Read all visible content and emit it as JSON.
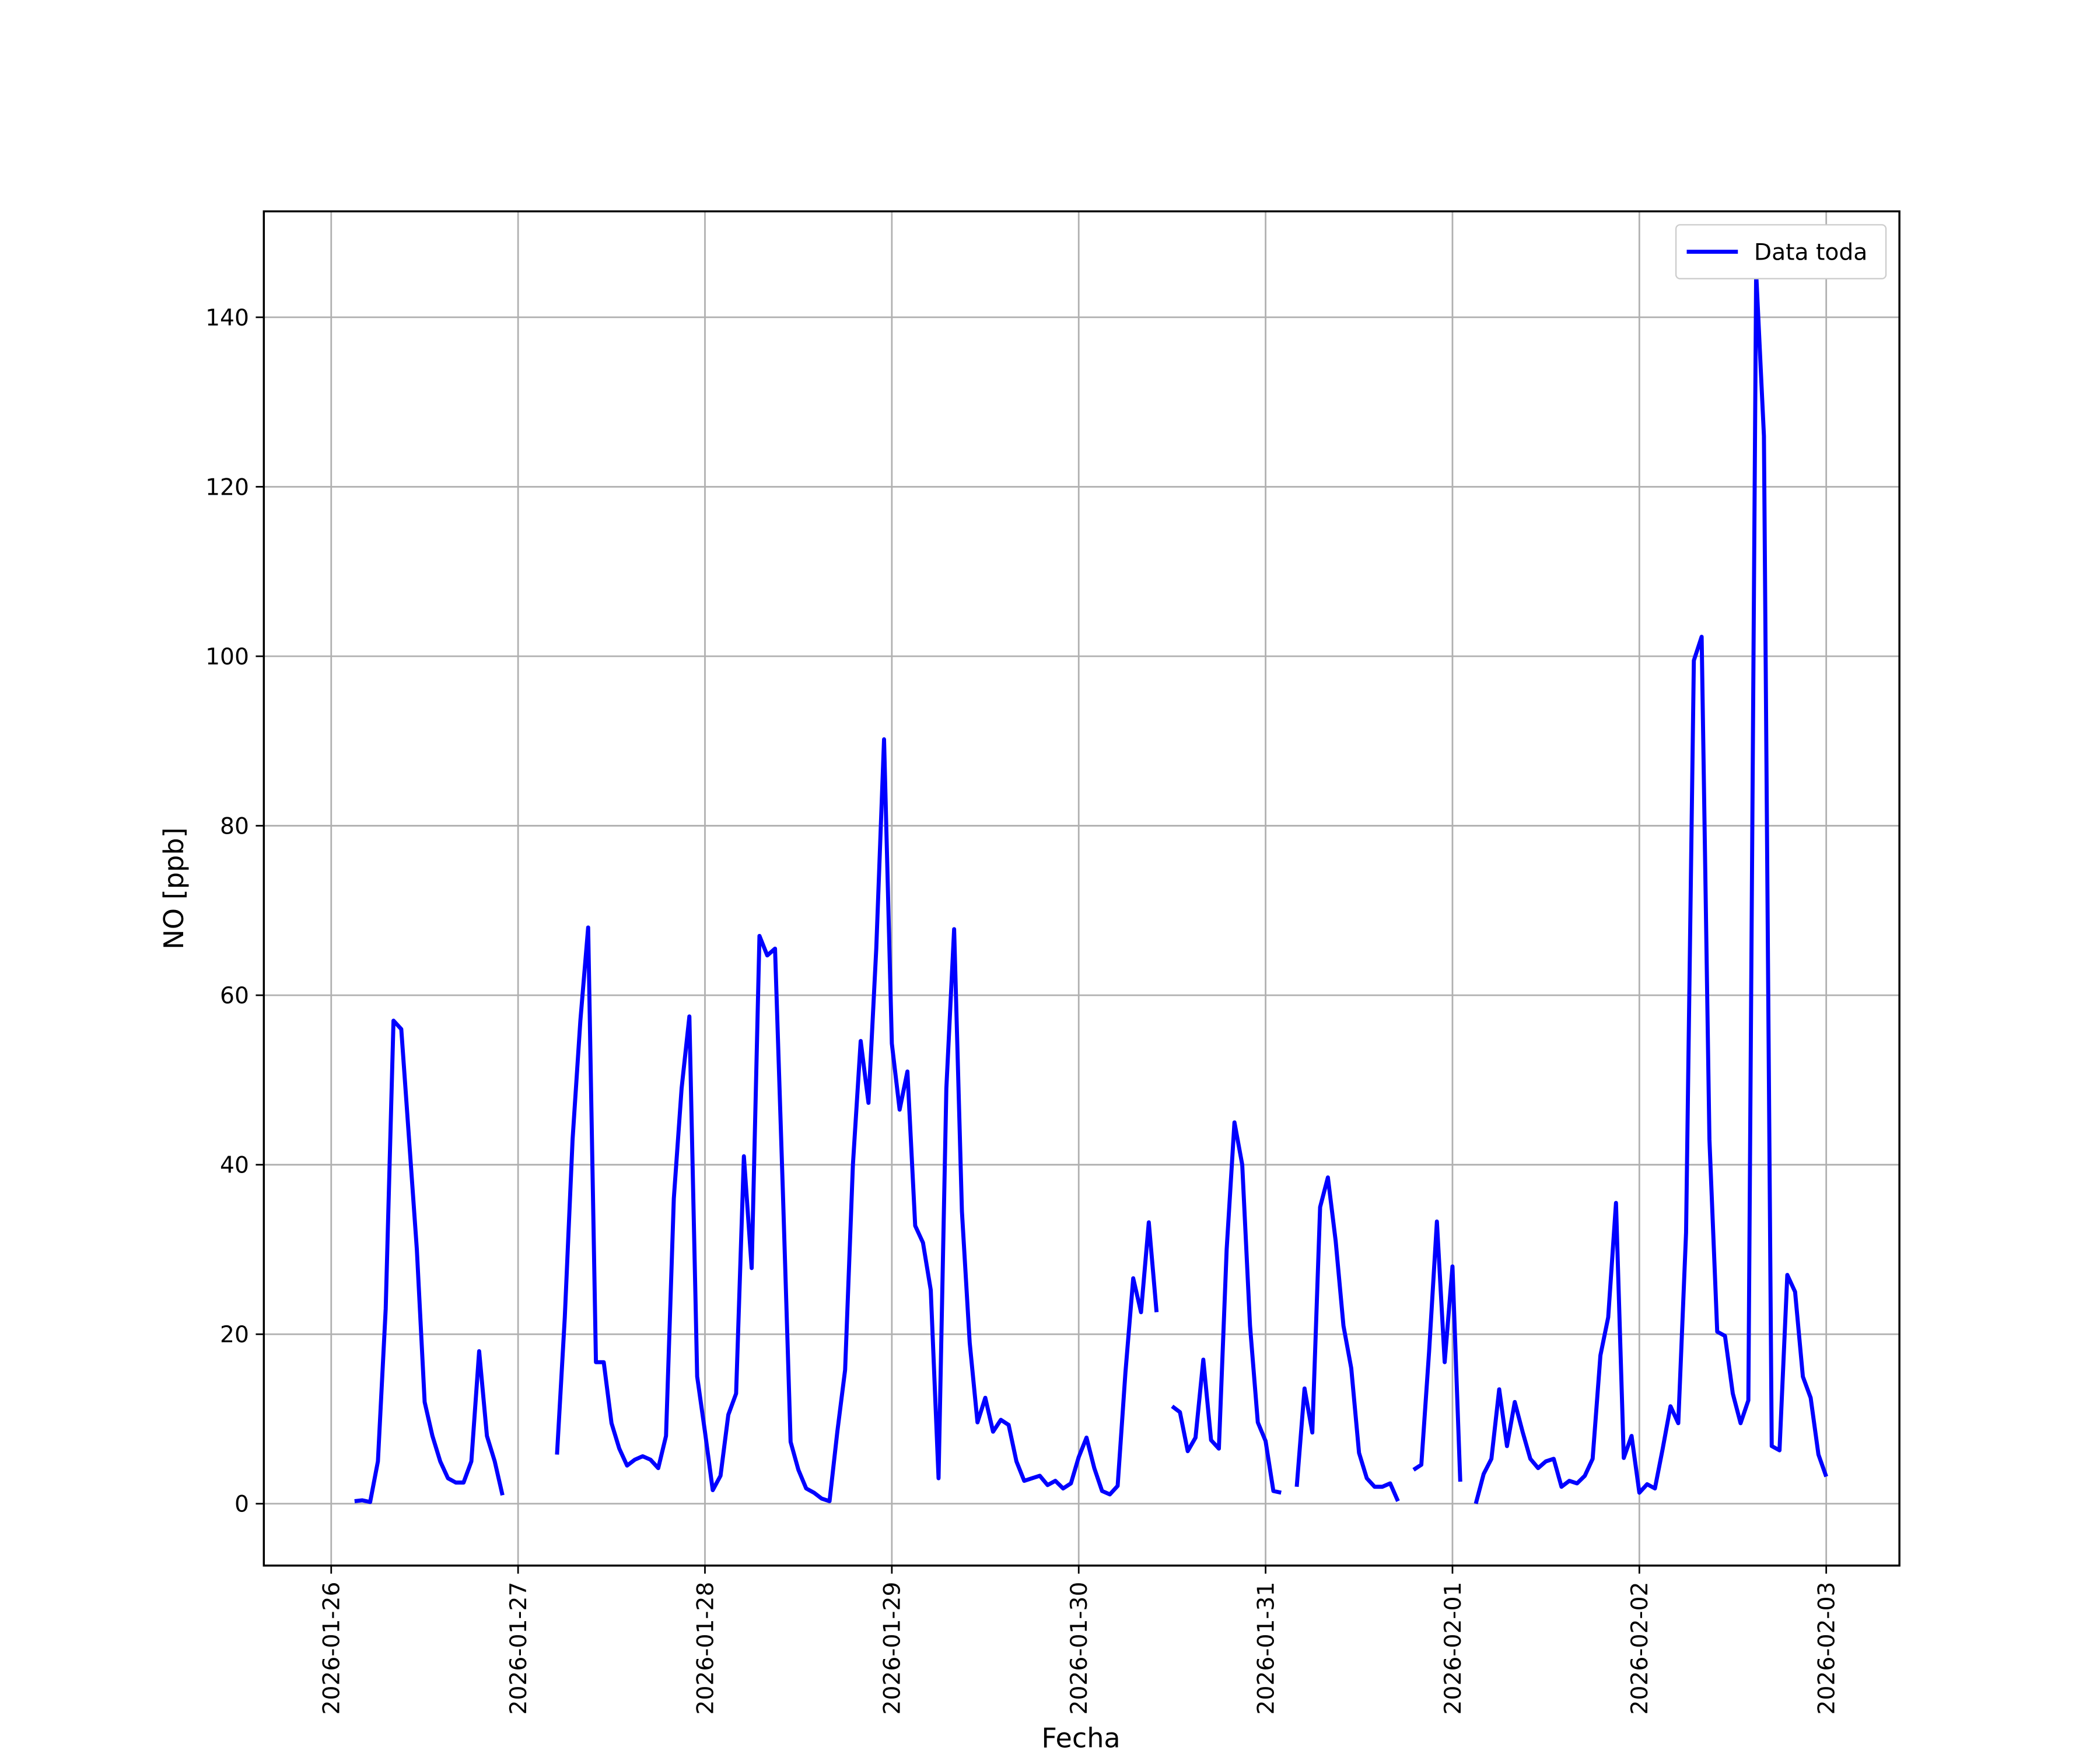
{
  "chart_data": {
    "type": "line",
    "xlabel": "Fecha",
    "ylabel": "NO [ppb]",
    "x": [
      3,
      4,
      5,
      6,
      7,
      8,
      9,
      10,
      11,
      12,
      13,
      14,
      15,
      16,
      17,
      18,
      19,
      20,
      21,
      22,
      23,
      24,
      25,
      26,
      27,
      28,
      29,
      30,
      31,
      32,
      33,
      34,
      35,
      36,
      37,
      38,
      39,
      40,
      41,
      42,
      43,
      44,
      45,
      46,
      47,
      48,
      49,
      50,
      51,
      52,
      53,
      54,
      55,
      56,
      57,
      58,
      59,
      60,
      61,
      62,
      63,
      64,
      65,
      66,
      67,
      68,
      69,
      70,
      71,
      72,
      73,
      74,
      75,
      76,
      77,
      78,
      79,
      80,
      81,
      82,
      83,
      84,
      85,
      86,
      87,
      88,
      89,
      90,
      91,
      92,
      93,
      94,
      95,
      96,
      97,
      98,
      99,
      100,
      101,
      102,
      103,
      104,
      105,
      106,
      107,
      108,
      109,
      110,
      111,
      112,
      113,
      114,
      115,
      116,
      117,
      118,
      119,
      120,
      121,
      122,
      123,
      124,
      125,
      126,
      127,
      128,
      129,
      130,
      131,
      132,
      133,
      134,
      135,
      136,
      137,
      138,
      139,
      140,
      141,
      142,
      143,
      144,
      145,
      146,
      147,
      148,
      149,
      150,
      151,
      152,
      153,
      154,
      155,
      156,
      157,
      158,
      159,
      160,
      161,
      162,
      163,
      164,
      165,
      166,
      167,
      168,
      169,
      170,
      171,
      172,
      173,
      174,
      175,
      176,
      177,
      178,
      179,
      180,
      181,
      182,
      183,
      184,
      185,
      186,
      187,
      188,
      189,
      190,
      191,
      192
    ],
    "series": [
      {
        "name": "Data toda",
        "color": "#0000ff",
        "values": [
          0.3,
          0.4,
          0.2,
          5,
          23,
          57,
          56,
          43,
          30,
          12,
          8,
          5,
          3,
          2.5,
          2.5,
          5,
          18,
          8,
          5,
          1,
          null,
          null,
          null,
          null,
          null,
          null,
          5.8,
          22,
          43,
          57,
          68,
          16.7,
          16.7,
          9.5,
          6.5,
          4.5,
          5.2,
          5.6,
          5.2,
          4.2,
          8,
          36,
          49,
          57.5,
          15,
          8.5,
          1.6,
          3.3,
          10.5,
          13,
          41,
          27.8,
          67,
          64.7,
          65.5,
          37,
          7.3,
          4,
          1.8,
          1.3,
          0.6,
          0.3,
          8.5,
          15.8,
          40,
          54.6,
          47.3,
          65.5,
          90.2,
          54.3,
          46.5,
          51,
          32.8,
          30.8,
          25.2,
          3,
          49,
          67.8,
          34.5,
          19,
          9.6,
          12.5,
          8.5,
          9.9,
          9.3,
          5,
          2.7,
          3,
          3.3,
          2.2,
          2.7,
          1.8,
          2.4,
          5.5,
          7.8,
          4.2,
          1.5,
          1.1,
          2.1,
          15.5,
          26.6,
          22.6,
          33.2,
          22.6,
          null,
          11.5,
          10.8,
          6.2,
          7.8,
          17,
          7.5,
          6.5,
          30,
          45,
          40,
          21,
          9.6,
          7.4,
          1.5,
          1.3,
          null,
          2,
          13.6,
          8.4,
          35,
          38.5,
          31,
          21,
          16,
          6,
          3,
          2,
          2,
          2.4,
          0.3,
          null,
          4,
          4.6,
          18,
          33.3,
          16.7,
          28,
          2.6,
          null,
          0,
          3.5,
          5.3,
          13.5,
          6.8,
          12,
          8.5,
          5.3,
          4.2,
          5,
          5.3,
          2,
          2.7,
          2.4,
          3.3,
          5.3,
          17.5,
          22,
          35.5,
          5.4,
          8,
          1.3,
          2.3,
          1.8,
          6.5,
          11.5,
          9.5,
          32,
          99.5,
          102.3,
          43,
          20.3,
          19.8,
          13,
          9.5,
          12.2,
          145.3,
          126,
          6.8,
          6.3,
          27,
          25,
          15,
          12.5,
          5.8,
          3.2
        ]
      }
    ],
    "xlim": [
      -8.65,
      201.4
    ],
    "xticks": [
      {
        "value": 0,
        "label": "2026-01-26"
      },
      {
        "value": 24,
        "label": "2026-01-27"
      },
      {
        "value": 48,
        "label": "2026-01-28"
      },
      {
        "value": 72,
        "label": "2026-01-29"
      },
      {
        "value": 96,
        "label": "2026-01-30"
      },
      {
        "value": 120,
        "label": "2026-01-31"
      },
      {
        "value": 144,
        "label": "2026-02-01"
      },
      {
        "value": 168,
        "label": "2026-02-02"
      },
      {
        "value": 192,
        "label": "2026-02-03"
      }
    ],
    "ylim": [
      -7.3,
      152.5
    ],
    "yticks": [
      0,
      20,
      40,
      60,
      80,
      100,
      120,
      140
    ],
    "grid": true,
    "legend": "upper right"
  }
}
